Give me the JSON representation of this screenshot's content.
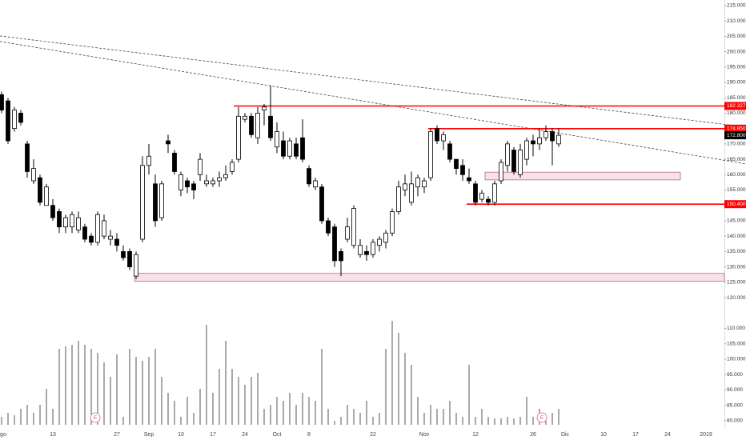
{
  "chart_data": {
    "type": "candlestick",
    "categories": [
      "ago",
      null,
      null,
      null,
      null,
      null,
      null,
      null,
      "13",
      null,
      null,
      null,
      null,
      null,
      null,
      null,
      null,
      null,
      "27",
      null,
      null,
      null,
      null,
      "Sep",
      null,
      null,
      null,
      null,
      "10",
      null,
      null,
      null,
      null,
      "17",
      null,
      null,
      null,
      null,
      "24",
      null,
      null,
      null,
      null,
      "Oct",
      null,
      null,
      null,
      null,
      "8",
      null,
      null,
      null,
      null,
      null,
      null,
      null,
      null,
      null,
      "22",
      null,
      null,
      null,
      null,
      null,
      null,
      null,
      "Nov",
      null,
      null,
      null,
      null,
      null,
      null,
      null,
      "12",
      null,
      null,
      null,
      null,
      null,
      null,
      null,
      null,
      "26",
      null,
      null,
      null,
      null,
      "Dic",
      null,
      null,
      null,
      null,
      null,
      "10",
      null,
      null,
      null,
      null,
      "17",
      null,
      null,
      null,
      null,
      "24",
      null,
      null,
      null,
      null,
      null,
      "2019",
      null,
      null,
      null
    ],
    "open": [
      186,
      184,
      175,
      180,
      170,
      158,
      159,
      150,
      150,
      148,
      143,
      143,
      142,
      143,
      140,
      138,
      140,
      139,
      139,
      135,
      135,
      127,
      139,
      163,
      157,
      146,
      171,
      167,
      155,
      158,
      157,
      160,
      157,
      157,
      158,
      159,
      161,
      165,
      178,
      179,
      172,
      181,
      179,
      169,
      171,
      166,
      170,
      172,
      162,
      156,
      156,
      145,
      143,
      135,
      139,
      137,
      134,
      135,
      134,
      137,
      138,
      141,
      148,
      155,
      151,
      156,
      156,
      159,
      175,
      171,
      170,
      165,
      163,
      159,
      157,
      152,
      152,
      151,
      158,
      163,
      168,
      160,
      165,
      171,
      170,
      172,
      174,
      170,
      null,
      null,
      null,
      null,
      null,
      null,
      null,
      null,
      null,
      null,
      null,
      null,
      null,
      null,
      null,
      null,
      null,
      null,
      null,
      null,
      null,
      null,
      null,
      null,
      null,
      null
    ],
    "high": [
      187,
      185,
      182,
      181,
      171,
      165,
      160,
      157,
      152,
      149,
      147,
      148,
      148,
      144,
      141,
      148,
      147,
      142,
      141,
      137,
      136,
      135,
      166,
      170,
      160,
      158,
      173,
      168,
      161,
      159,
      158,
      167,
      160,
      159,
      161,
      163,
      165,
      182,
      180,
      180,
      182,
      183,
      189,
      177,
      174,
      172,
      172,
      178,
      163,
      159,
      157,
      146,
      144,
      136,
      146,
      150,
      139,
      137,
      139,
      140,
      142,
      149,
      158,
      160,
      161,
      160,
      159,
      175,
      176,
      174,
      171,
      165,
      165,
      162,
      158,
      155,
      153,
      158,
      165,
      171,
      169,
      170,
      172,
      173,
      175,
      176,
      175,
      175,
      null,
      null,
      null,
      null,
      null,
      null,
      null,
      null,
      null,
      null,
      null,
      null,
      null,
      null,
      null,
      null,
      null,
      null,
      null,
      null,
      null,
      null,
      null,
      null,
      null,
      null
    ],
    "low": [
      180,
      170,
      174,
      176,
      159,
      157,
      150,
      150,
      145,
      141,
      141,
      141,
      141,
      138,
      137,
      137,
      139,
      137,
      135,
      132,
      129,
      126,
      138,
      160,
      143,
      145,
      167,
      160,
      153,
      154,
      152,
      158,
      156,
      156,
      156,
      158,
      160,
      164,
      177,
      172,
      170,
      176,
      171,
      167,
      165,
      165,
      165,
      164,
      156,
      155,
      144,
      140,
      130,
      127,
      138,
      136,
      133,
      132,
      133,
      135,
      136,
      140,
      147,
      153,
      150,
      153,
      154,
      158,
      170,
      168,
      164,
      160,
      158,
      157,
      150,
      151,
      150,
      150,
      157,
      161,
      160,
      159,
      163,
      166,
      168,
      171,
      163,
      169,
      null,
      null,
      null,
      null,
      null,
      null,
      null,
      null,
      null,
      null,
      null,
      null,
      null,
      null,
      null,
      null,
      null,
      null,
      null,
      null,
      null,
      null,
      null,
      null,
      null,
      null
    ],
    "close": [
      181,
      171,
      181,
      177,
      161,
      162,
      151,
      156,
      146,
      143,
      146,
      147,
      146,
      139,
      138,
      147,
      145,
      140,
      137,
      133,
      130,
      134,
      163,
      166,
      145,
      157,
      170,
      161,
      160,
      156,
      155,
      165,
      158,
      158,
      159,
      160,
      164,
      179,
      179,
      173,
      180,
      182,
      172,
      174,
      166,
      171,
      166,
      165,
      157,
      158,
      145,
      141,
      132,
      132,
      143,
      149,
      137,
      134,
      138,
      139,
      141,
      148,
      156,
      157,
      157,
      159,
      158,
      174,
      171,
      173,
      165,
      162,
      160,
      158,
      151,
      154,
      151,
      157,
      164,
      170,
      161,
      168,
      171,
      170,
      172,
      174,
      171,
      172.8,
      null,
      null,
      null,
      null,
      null,
      null,
      null,
      null,
      null,
      null,
      null,
      null,
      null,
      null,
      null,
      null,
      null,
      null,
      null,
      null,
      null,
      null,
      null,
      null,
      null,
      null
    ],
    "volume": [
      10,
      15,
      12,
      20,
      25,
      15,
      25,
      45,
      20,
      95,
      98,
      100,
      105,
      100,
      95,
      90,
      78,
      60,
      88,
      10,
      95,
      85,
      80,
      85,
      95,
      60,
      40,
      30,
      10,
      35,
      15,
      45,
      125,
      40,
      70,
      105,
      70,
      60,
      50,
      60,
      65,
      20,
      25,
      35,
      30,
      40,
      25,
      40,
      35,
      30,
      95,
      20,
      5,
      10,
      25,
      20,
      15,
      30,
      10,
      15,
      95,
      130,
      115,
      90,
      75,
      35,
      15,
      25,
      20,
      20,
      30,
      15,
      10,
      75,
      10,
      20,
      10,
      8,
      8,
      10,
      8,
      10,
      35,
      10,
      20,
      5,
      15,
      20,
      null,
      null,
      null,
      null,
      null,
      null,
      null,
      null,
      null,
      null,
      null,
      null,
      null,
      null,
      null,
      null,
      null,
      null,
      null,
      null,
      null,
      null,
      null,
      null,
      null,
      null
    ],
    "up_color": "#ffffff",
    "down_color": "#000000",
    "volume_color": "#555555",
    "ylim": [
      77.6,
      216.8
    ],
    "yticks": [
      {
        "value": 215,
        "label": "215.000"
      },
      {
        "value": 210,
        "label": "210.000"
      },
      {
        "value": 205,
        "label": "205.000"
      },
      {
        "value": 200,
        "label": "200.000"
      },
      {
        "value": 195,
        "label": "195.000"
      },
      {
        "value": 190,
        "label": "190.000"
      },
      {
        "value": 185,
        "label": "185.000"
      },
      {
        "value": 180,
        "label": "180.000"
      },
      {
        "value": 175,
        "label": "175.000"
      },
      {
        "value": 170,
        "label": "170.000"
      },
      {
        "value": 165,
        "label": "165.000"
      },
      {
        "value": 160,
        "label": "160.000"
      },
      {
        "value": 155,
        "label": "155.000"
      },
      {
        "value": 150,
        "label": "150.000"
      },
      {
        "value": 145,
        "label": "145.000"
      },
      {
        "value": 140,
        "label": "140.000"
      },
      {
        "value": 135,
        "label": "135.000"
      },
      {
        "value": 130,
        "label": "130.000"
      },
      {
        "value": 125,
        "label": "125.000"
      },
      {
        "value": 120,
        "label": "120.000"
      },
      {
        "value": 110,
        "label": "110.000"
      },
      {
        "value": 105,
        "label": "105.000"
      },
      {
        "value": 100,
        "label": "100.000"
      },
      {
        "value": 95,
        "label": "95.000"
      },
      {
        "value": 90,
        "label": "90.000"
      },
      {
        "value": 85,
        "label": "85.000"
      },
      {
        "value": 80,
        "label": "80.000"
      }
    ],
    "levels": [
      {
        "value": 182.327,
        "label": "182.327"
      },
      {
        "value": 174.95,
        "label": "174.950"
      },
      {
        "value": 150.4,
        "label": "150.400"
      }
    ],
    "level_color": "#ff0000",
    "last_price": {
      "value": 172.8,
      "label": "172.800"
    },
    "zones": [
      {
        "range": [
          125.3,
          127.9
        ]
      },
      {
        "range": [
          158.3,
          160.8
        ]
      }
    ],
    "zone_color": "#f9e1e8",
    "trendlines": [
      {
        "values": [
          205.1,
          175.5
        ]
      },
      {
        "values": [
          203.3,
          163.5
        ]
      }
    ],
    "events": [
      "E",
      "E"
    ],
    "event_color": "#e0606e"
  }
}
